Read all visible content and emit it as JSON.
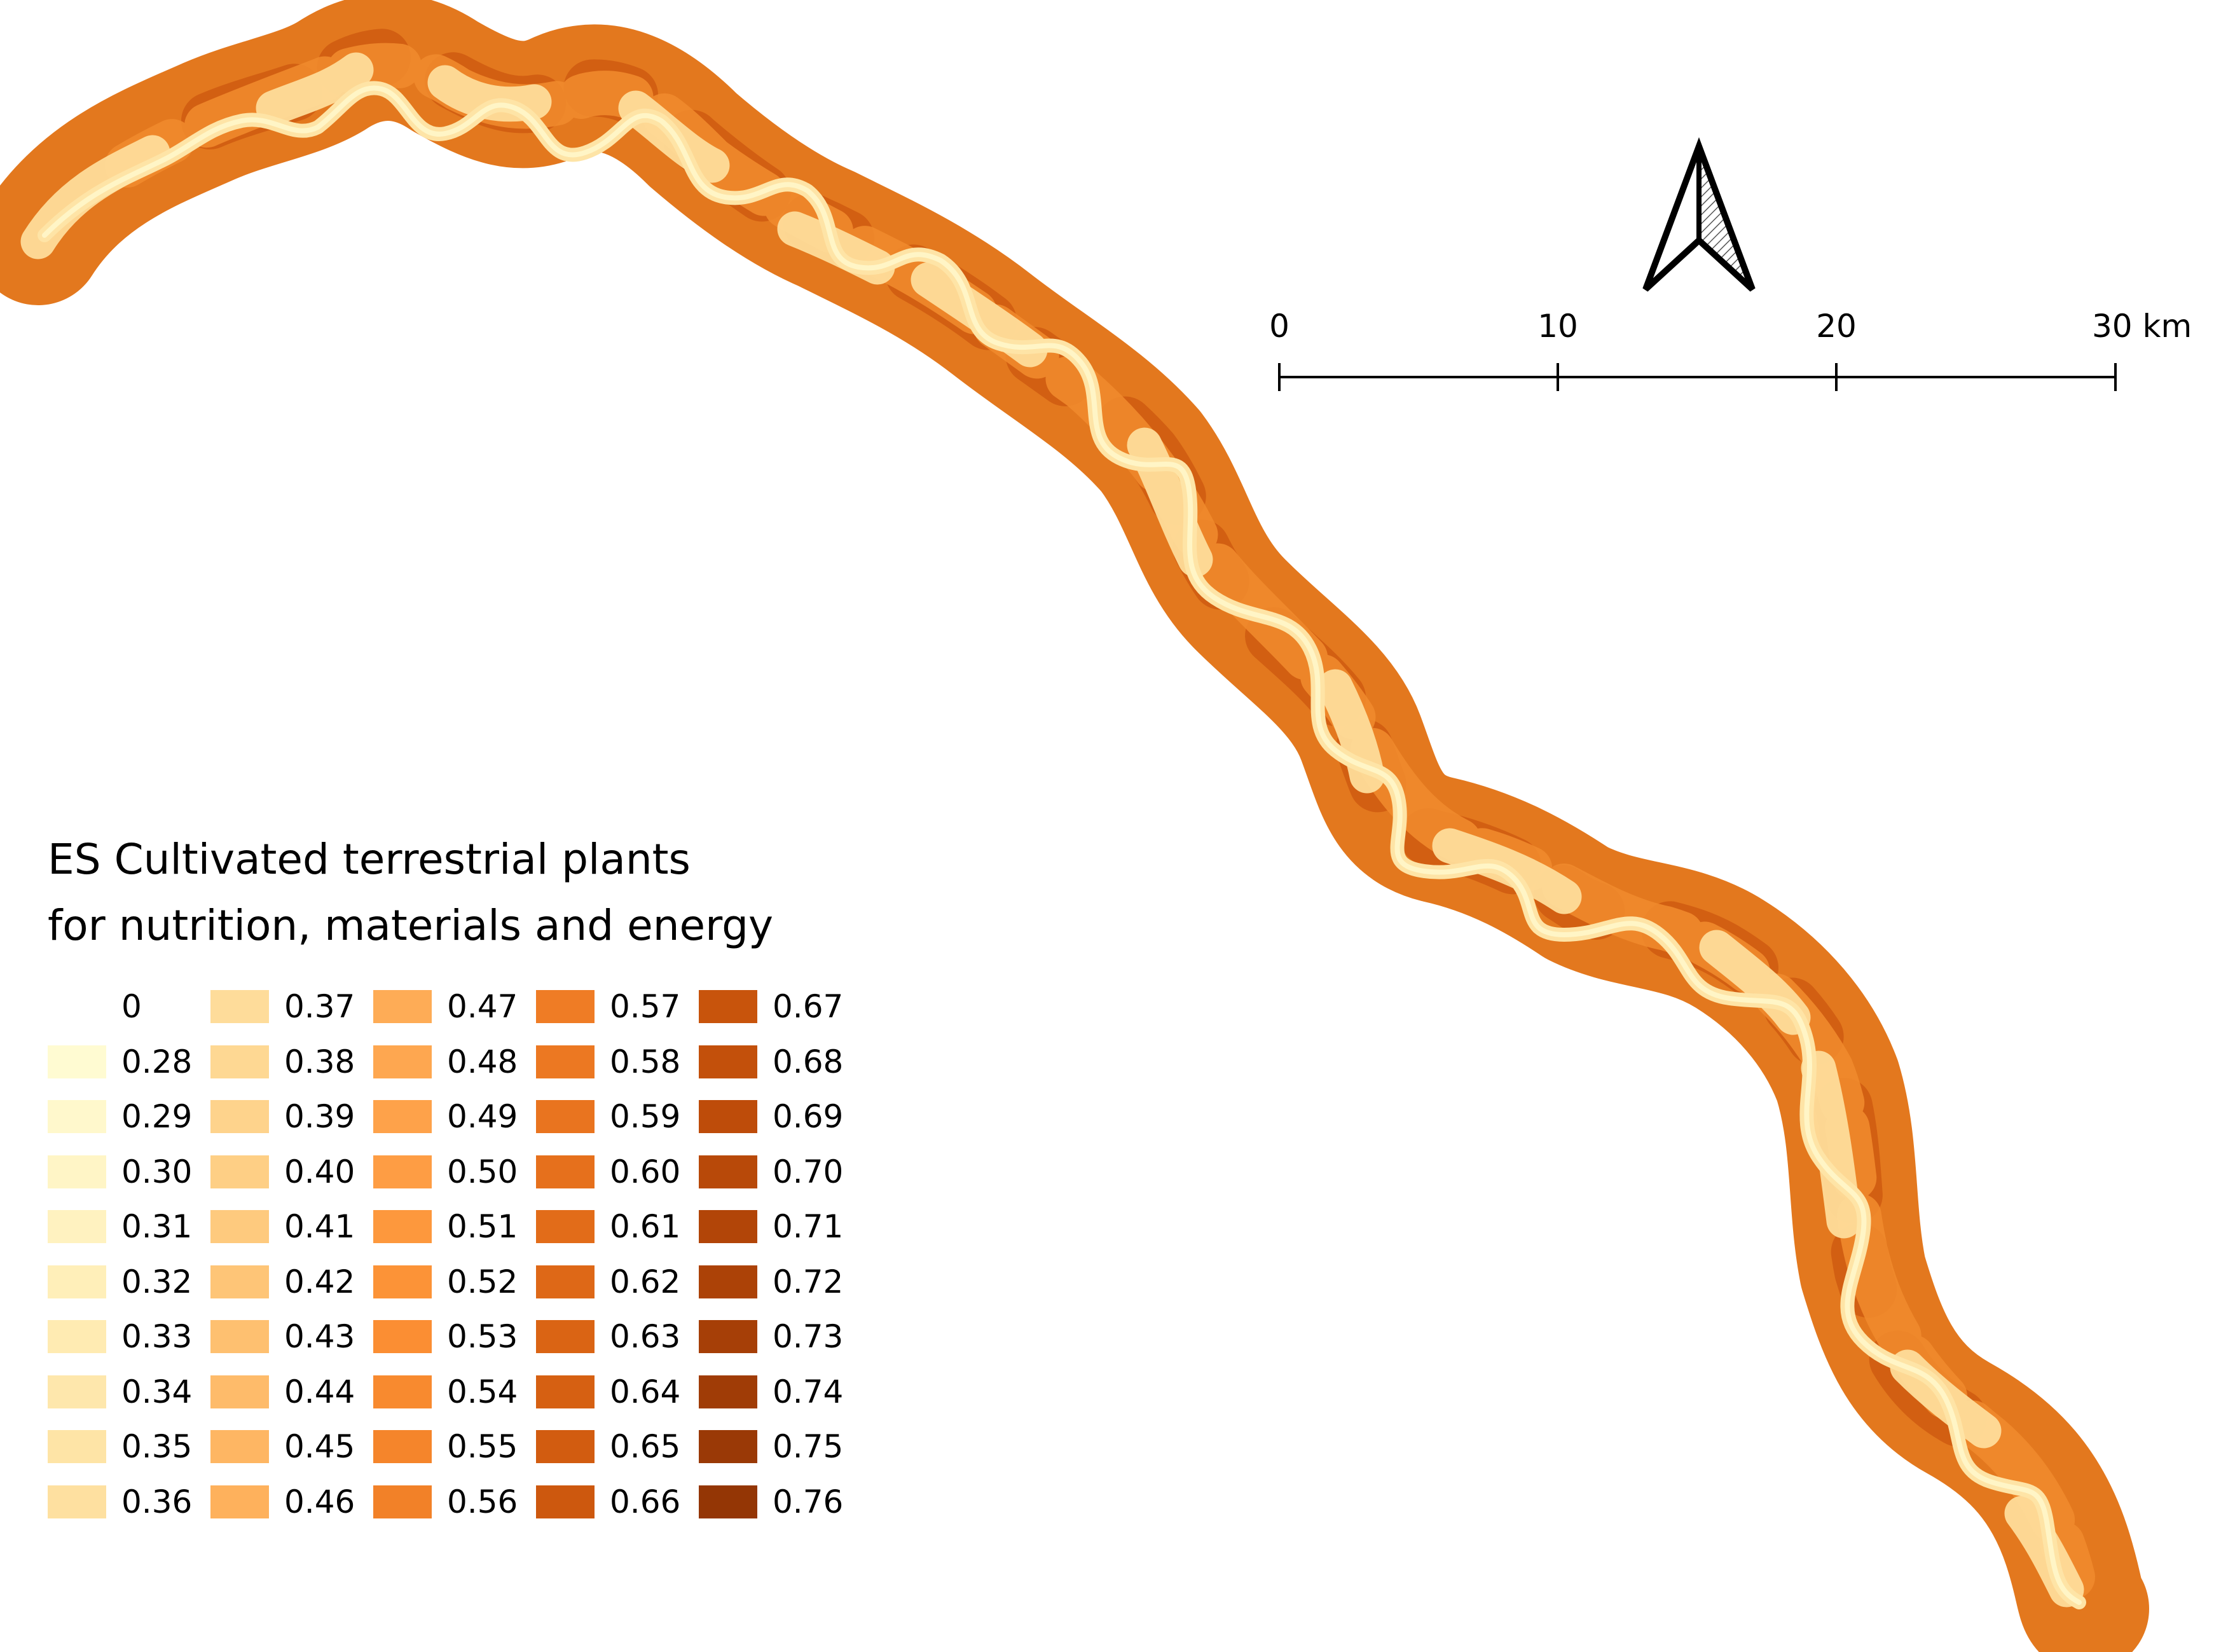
{
  "legend": {
    "title_line1": "ES Cultivated terrestrial plants",
    "title_line2": "for nutrition, materials and energy",
    "classes": [
      {
        "label": "0",
        "color": "#ffffff"
      },
      {
        "label": "0.28",
        "color": "#fffbd2"
      },
      {
        "label": "0.29",
        "color": "#fff8cc"
      },
      {
        "label": "0.30",
        "color": "#fff5c6"
      },
      {
        "label": "0.31",
        "color": "#fff2c0"
      },
      {
        "label": "0.32",
        "color": "#ffefb9"
      },
      {
        "label": "0.33",
        "color": "#ffebb2"
      },
      {
        "label": "0.34",
        "color": "#fee7ac"
      },
      {
        "label": "0.35",
        "color": "#fee4a6"
      },
      {
        "label": "0.36",
        "color": "#fee0a0"
      },
      {
        "label": "0.37",
        "color": "#fedc9a"
      },
      {
        "label": "0.38",
        "color": "#fed893"
      },
      {
        "label": "0.39",
        "color": "#fed38c"
      },
      {
        "label": "0.40",
        "color": "#fecf85"
      },
      {
        "label": "0.41",
        "color": "#feca7e"
      },
      {
        "label": "0.42",
        "color": "#fec577"
      },
      {
        "label": "0.43",
        "color": "#fec070"
      },
      {
        "label": "0.44",
        "color": "#febb6a"
      },
      {
        "label": "0.45",
        "color": "#feb663"
      },
      {
        "label": "0.46",
        "color": "#feb15c"
      },
      {
        "label": "0.47",
        "color": "#feac56"
      },
      {
        "label": "0.48",
        "color": "#fea750"
      },
      {
        "label": "0.49",
        "color": "#fea24a"
      },
      {
        "label": "0.50",
        "color": "#fe9d44"
      },
      {
        "label": "0.51",
        "color": "#fd983d"
      },
      {
        "label": "0.52",
        "color": "#fc9337"
      },
      {
        "label": "0.53",
        "color": "#fb8e33"
      },
      {
        "label": "0.54",
        "color": "#f88a2f"
      },
      {
        "label": "0.55",
        "color": "#f5852b"
      },
      {
        "label": "0.56",
        "color": "#f28128"
      },
      {
        "label": "0.57",
        "color": "#ef7c25"
      },
      {
        "label": "0.58",
        "color": "#ec7822"
      },
      {
        "label": "0.59",
        "color": "#e9741f"
      },
      {
        "label": "0.60",
        "color": "#e6701c"
      },
      {
        "label": "0.61",
        "color": "#e26c19"
      },
      {
        "label": "0.62",
        "color": "#de6817"
      },
      {
        "label": "0.63",
        "color": "#da6414"
      },
      {
        "label": "0.64",
        "color": "#d66012"
      },
      {
        "label": "0.65",
        "color": "#d25c10"
      },
      {
        "label": "0.66",
        "color": "#cd580e"
      },
      {
        "label": "0.67",
        "color": "#c8540c"
      },
      {
        "label": "0.68",
        "color": "#c3500b"
      },
      {
        "label": "0.69",
        "color": "#be4c0a"
      },
      {
        "label": "0.70",
        "color": "#b84909"
      },
      {
        "label": "0.71",
        "color": "#b24508"
      },
      {
        "label": "0.72",
        "color": "#ac4207"
      },
      {
        "label": "0.73",
        "color": "#a63f07"
      },
      {
        "label": "0.74",
        "color": "#a03c06"
      },
      {
        "label": "0.75",
        "color": "#9a3906"
      },
      {
        "label": "0.76",
        "color": "#943605"
      }
    ]
  },
  "scale_bar": {
    "tick_labels": [
      "0",
      "10",
      "20",
      "30 km"
    ]
  },
  "north_arrow": {
    "icon": "north-arrow-icon"
  }
}
